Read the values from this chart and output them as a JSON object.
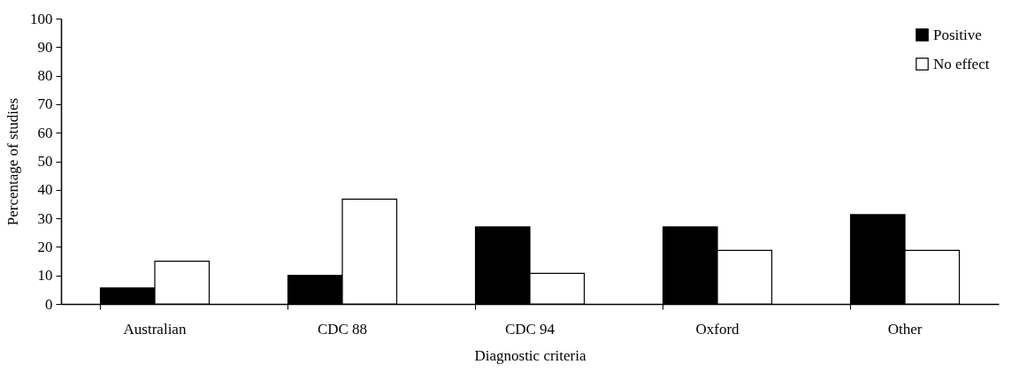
{
  "chart_data": {
    "type": "bar",
    "categories": [
      "Australian",
      "CDC 88",
      "CDC 94",
      "Oxford",
      "Other"
    ],
    "series": [
      {
        "name": "Positive",
        "color": "#000000",
        "values": [
          5.6,
          10,
          27,
          27,
          31.3
        ]
      },
      {
        "name": "No effect",
        "color": "#ffffff",
        "values": [
          15,
          36.7,
          10.7,
          18.8,
          18.8
        ]
      }
    ],
    "xlabel": "Diagnostic criteria",
    "ylabel": "Percentage of studies",
    "ylim": [
      0,
      100
    ],
    "yticks": [
      0,
      10,
      20,
      30,
      40,
      50,
      60,
      70,
      80,
      90,
      100
    ],
    "grid": false,
    "legend": "top right"
  }
}
